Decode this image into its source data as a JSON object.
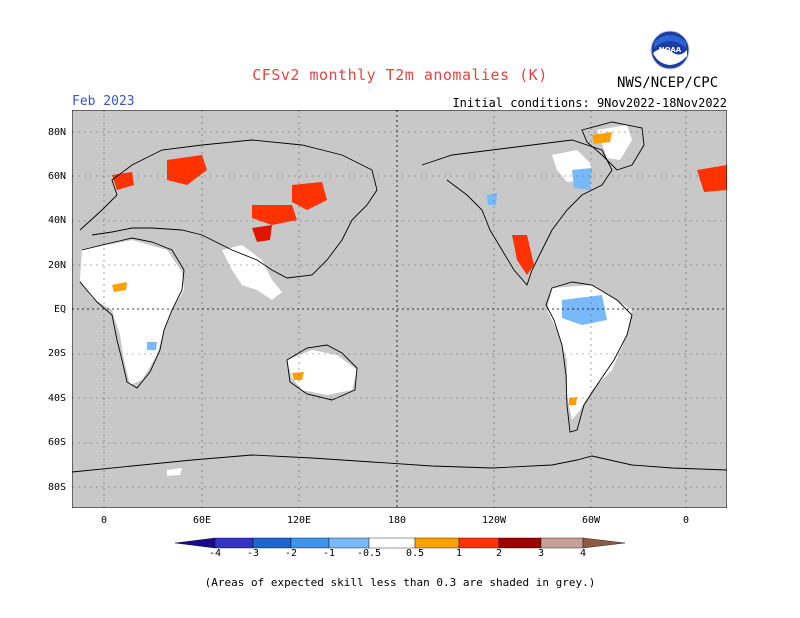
{
  "header": {
    "title": "CFSv2 monthly T2m anomalies (K)",
    "forecast_month": "Feb 2023",
    "initial_conditions": "Initial conditions: 9Nov2022-18Nov2022",
    "agency": "NWS/NCEP/CPC",
    "logo_icon": "noaa-logo-icon"
  },
  "map": {
    "projection": "cylindrical-equidistant",
    "center_longitude": "180",
    "background_color": "#c8c8c8",
    "lat_labels": [
      "80N",
      "60N",
      "40N",
      "20N",
      "EQ",
      "20S",
      "40S",
      "60S",
      "80S"
    ],
    "lon_labels": [
      "0",
      "60E",
      "120E",
      "180",
      "120W",
      "60W",
      "0"
    ]
  },
  "legend": {
    "labels": [
      "-4",
      "-3",
      "-2",
      "-1",
      "-0.5",
      "0.5",
      "1",
      "2",
      "3",
      "4"
    ],
    "colors": {
      "lt_-4": "#1a0a8c",
      "-4_-3": "#3333c8",
      "-3_-2": "#1e64d2",
      "-2_-1": "#3c96f0",
      "-1_-0.5": "#78b9fa",
      "-0.5_0.5": "#ffffff",
      "0.5_1": "#ffa000",
      "1_2": "#ff3200",
      "2_3": "#e11400",
      "3_4": "#a00000",
      "4_5": "#c8a096",
      "gt_5": "#8c5a46"
    }
  },
  "footnote": "(Areas of expected skill less than 0.3 are shaded in grey.)"
}
